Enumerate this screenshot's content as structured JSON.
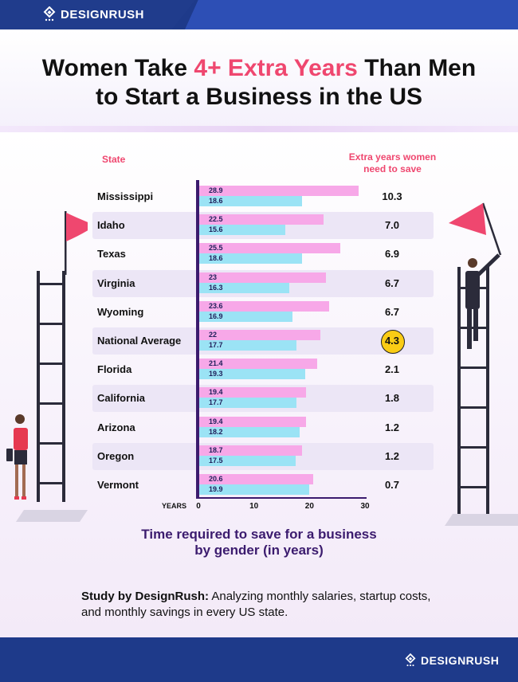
{
  "brand": {
    "name": "DESIGNRUSH"
  },
  "title": {
    "part1": "Women Take ",
    "highlight": "4+ Extra Years",
    "part2": " Than Men",
    "line2": "to Start a Business in the US"
  },
  "headers": {
    "state": "State",
    "extra_line1": "Extra years women",
    "extra_line2": "need to save"
  },
  "chart_data": {
    "type": "bar",
    "orientation": "horizontal",
    "categories": [
      "Mississippi",
      "Idaho",
      "Texas",
      "Virginia",
      "Wyoming",
      "National Average",
      "Florida",
      "California",
      "Arizona",
      "Oregon",
      "Vermont"
    ],
    "series": [
      {
        "name": "women",
        "color": "#f7a8e8",
        "values": [
          28.9,
          22.5,
          25.5,
          23,
          23.6,
          22,
          21.4,
          19.4,
          19.4,
          18.7,
          20.6
        ],
        "labels": [
          "28.9",
          "22.5",
          "25.5",
          "23",
          "23.6",
          "22",
          "21.4",
          "19.4",
          "19.4",
          "18.7",
          "20.6"
        ]
      },
      {
        "name": "men",
        "color": "#9be3f5",
        "values": [
          18.6,
          15.6,
          18.6,
          16.3,
          16.9,
          17.7,
          19.3,
          17.7,
          18.2,
          17.5,
          19.9
        ],
        "labels": [
          "18.6",
          "15.6",
          "18.6",
          "16.3",
          "16.9",
          "17.7",
          "19.3",
          "17.7",
          "18.2",
          "17.5",
          "19.9"
        ]
      }
    ],
    "extra_years": [
      "10.3",
      "7.0",
      "6.9",
      "6.7",
      "6.7",
      "4.3",
      "2.1",
      "1.8",
      "1.2",
      "1.2",
      "0.7"
    ],
    "highlighted_category": "National Average",
    "xlabel": "YEARS",
    "xlim": [
      0,
      30
    ],
    "xticks": [
      "0",
      "10",
      "20",
      "30"
    ],
    "caption": "Time required to save for a business by gender (in years)"
  },
  "subtitle": {
    "line1": "Time required to save for a business",
    "line2": "by gender (in years)"
  },
  "study": {
    "bold": "Study by DesignRush:",
    "text": " Analyzing monthly salaries, startup costs, and monthly savings in every US state."
  },
  "colors": {
    "accent": "#ef476f",
    "navy": "#1e3a8a",
    "purple": "#3b1b6e",
    "highlight": "#facc15"
  }
}
